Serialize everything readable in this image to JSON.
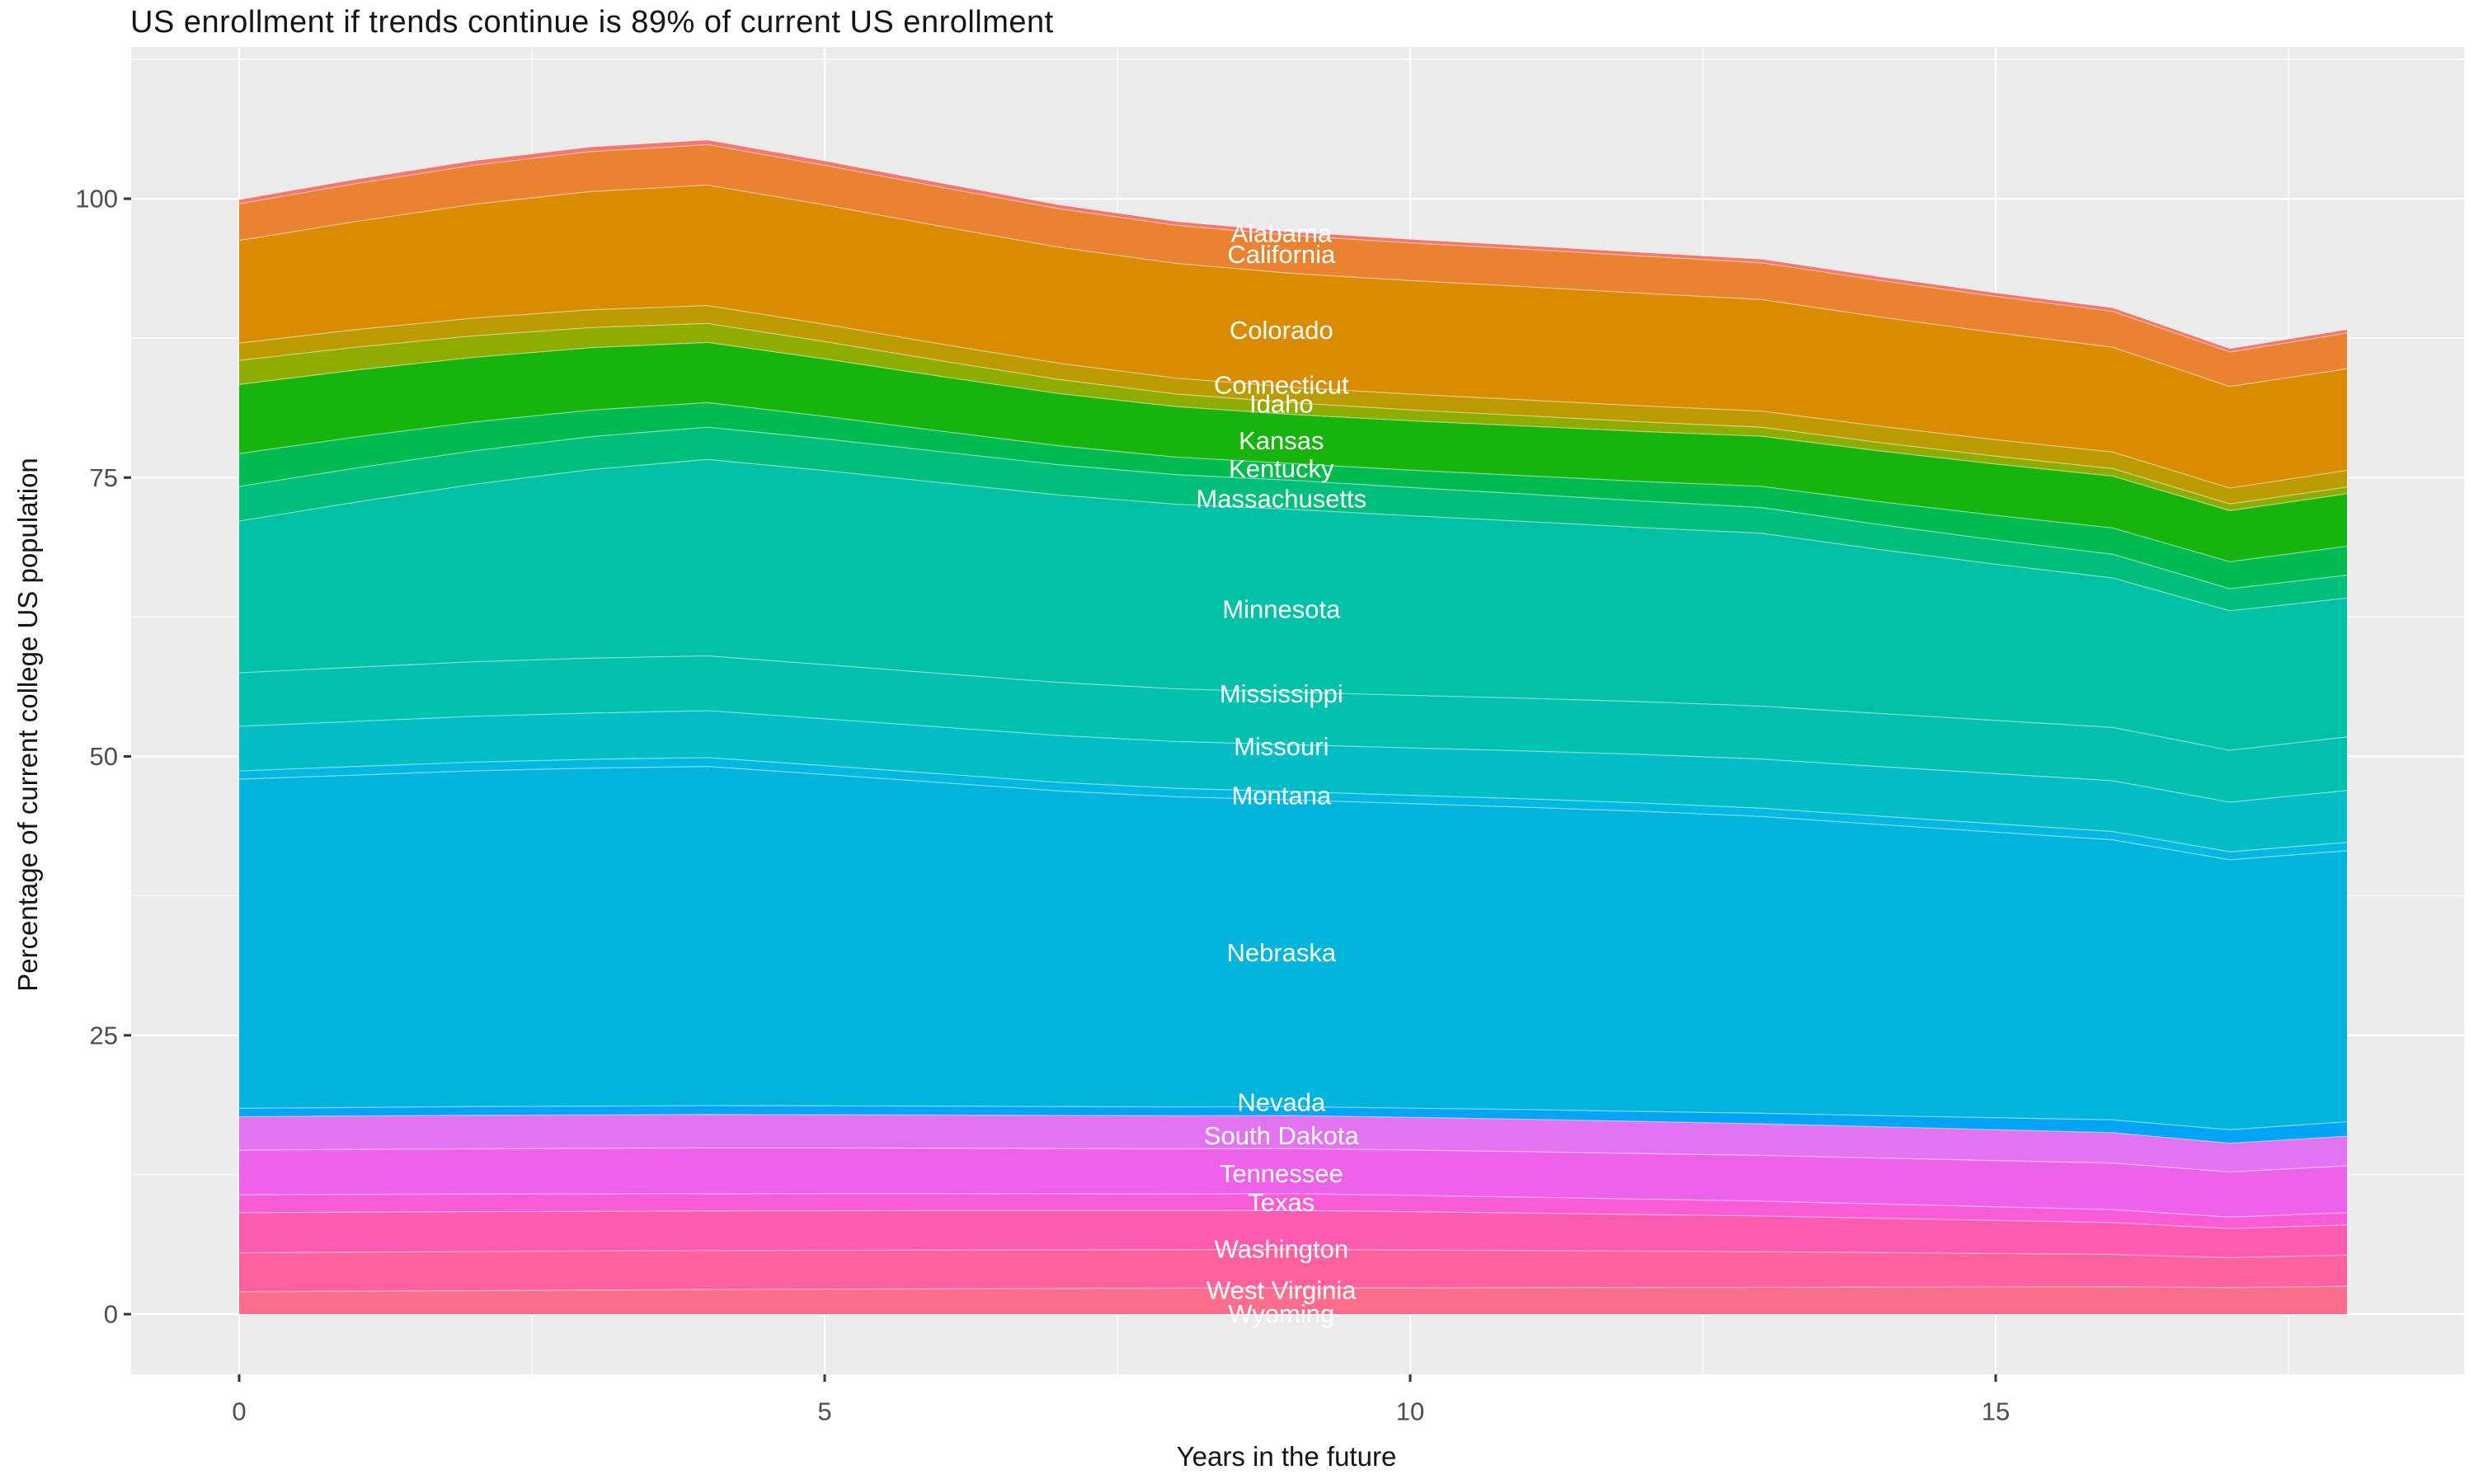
{
  "title": "US enrollment if trends continue is 89% of current US enrollment",
  "colors": {
    "panel_background": "#EBEBEB",
    "grid_major": "#FFFFFF",
    "grid_minor": "#FFFFFF",
    "tick_mark": "#333333",
    "tick_label": "#4D4D4D",
    "axis_title": "#141414",
    "series_label_text": "#FFFFFF",
    "band_seam": "rgba(255,255,255,0.45)"
  },
  "x_axis": {
    "label": "Years in the future",
    "major_ticks": [
      0,
      5,
      10,
      15
    ],
    "minor_ticks": [
      2.5,
      7.5,
      12.5,
      17.5
    ]
  },
  "y_axis": {
    "label": "Percentage of current college US population",
    "major_ticks": [
      0,
      25,
      50,
      75,
      100
    ],
    "minor_ticks": [
      12.5,
      37.5,
      62.5,
      87.5,
      112.5
    ]
  },
  "chart_data": {
    "type": "area",
    "stacked": true,
    "title": "US enrollment if trends continue is 89% of current US enrollment",
    "xlabel": "Years in the future",
    "ylabel": "Percentage of current college US population",
    "x": [
      0,
      1,
      2,
      3,
      4,
      5,
      6,
      7,
      8,
      9,
      10,
      11,
      12,
      13,
      14,
      15,
      16,
      17,
      18
    ],
    "xlim": [
      -0.95,
      19.0
    ],
    "ylim": [
      -4.8,
      113.5
    ],
    "grid": true,
    "legend_position": "none",
    "label_x": 8.9,
    "series": [
      {
        "name": "Alabama",
        "color": "#F8766D",
        "label_pos": 96.9,
        "values": [
          0.35,
          0.37,
          0.39,
          0.4,
          0.4,
          0.38,
          0.36,
          0.34,
          0.32,
          0.3,
          0.3,
          0.3,
          0.3,
          0.3,
          0.3,
          0.3,
          0.3,
          0.28,
          0.3
        ]
      },
      {
        "name": "California",
        "color": "#EA8331",
        "label_pos": 95.0,
        "values": [
          3.3,
          3.4,
          3.5,
          3.58,
          3.62,
          3.55,
          3.5,
          3.45,
          3.42,
          3.4,
          3.38,
          3.36,
          3.34,
          3.3,
          3.28,
          3.25,
          3.22,
          3.1,
          3.2
        ]
      },
      {
        "name": "Colorado",
        "color": "#D98C00",
        "label_pos": 88.2,
        "values": [
          9.2,
          9.7,
          10.2,
          10.6,
          10.8,
          10.7,
          10.55,
          10.4,
          10.28,
          10.2,
          10.18,
          10.15,
          10.1,
          10.0,
          9.8,
          9.6,
          9.4,
          9.1,
          9.1
        ]
      },
      {
        "name": "Connecticut",
        "color": "#BC9B00",
        "label_pos": 83.3,
        "values": [
          1.55,
          1.57,
          1.59,
          1.6,
          1.6,
          1.55,
          1.5,
          1.46,
          1.42,
          1.4,
          1.41,
          1.42,
          1.43,
          1.45,
          1.46,
          1.47,
          1.48,
          1.42,
          1.5
        ]
      },
      {
        "name": "Idaho",
        "color": "#8FAC00",
        "label_pos": 81.6,
        "values": [
          2.15,
          2.05,
          1.93,
          1.8,
          1.7,
          1.55,
          1.4,
          1.26,
          1.14,
          1.05,
          0.98,
          0.92,
          0.86,
          0.8,
          0.75,
          0.71,
          0.67,
          0.61,
          0.6
        ]
      },
      {
        "name": "Kansas",
        "color": "#16B40C",
        "label_pos": 78.3,
        "values": [
          6.2,
          6.0,
          5.8,
          5.6,
          5.4,
          5.15,
          4.9,
          4.68,
          4.52,
          4.4,
          4.42,
          4.45,
          4.48,
          4.5,
          4.55,
          4.6,
          4.65,
          4.58,
          4.7
        ]
      },
      {
        "name": "Kentucky",
        "color": "#00BB50",
        "label_pos": 75.8,
        "values": [
          2.95,
          2.78,
          2.58,
          2.38,
          2.2,
          2.02,
          1.85,
          1.7,
          1.58,
          1.5,
          1.56,
          1.65,
          1.76,
          1.9,
          2.05,
          2.2,
          2.36,
          2.42,
          2.6
        ]
      },
      {
        "name": "Massachusetts",
        "color": "#00BF7D",
        "label_pos": 73.1,
        "values": [
          3.1,
          3.06,
          3.0,
          2.95,
          2.9,
          2.84,
          2.78,
          2.71,
          2.65,
          2.6,
          2.53,
          2.45,
          2.38,
          2.3,
          2.24,
          2.18,
          2.12,
          1.98,
          2.05
        ]
      },
      {
        "name": "Minnesota",
        "color": "#00C1A6",
        "label_pos": 63.2,
        "values": [
          13.6,
          14.8,
          15.9,
          16.9,
          17.6,
          17.4,
          17.1,
          16.8,
          16.55,
          16.4,
          16.1,
          15.85,
          15.6,
          15.5,
          14.7,
          14.0,
          13.4,
          12.5,
          12.45
        ]
      },
      {
        "name": "Mississippi",
        "color": "#00C0B0",
        "label_pos": 55.6,
        "values": [
          4.8,
          4.85,
          4.9,
          4.92,
          4.92,
          4.86,
          4.8,
          4.76,
          4.72,
          4.7,
          4.71,
          4.72,
          4.73,
          4.75,
          4.76,
          4.77,
          4.78,
          4.65,
          4.8
        ]
      },
      {
        "name": "Missouri",
        "color": "#00BDC6",
        "label_pos": 50.9,
        "values": [
          4.0,
          4.05,
          4.1,
          4.15,
          4.2,
          4.2,
          4.2,
          4.2,
          4.2,
          4.2,
          4.25,
          4.3,
          4.35,
          4.4,
          4.45,
          4.5,
          4.55,
          4.45,
          4.65
        ]
      },
      {
        "name": "Montana",
        "color": "#00B8E0",
        "label_pos": 46.5,
        "values": [
          0.75,
          0.77,
          0.78,
          0.79,
          0.8,
          0.79,
          0.78,
          0.77,
          0.76,
          0.75,
          0.75,
          0.75,
          0.75,
          0.75,
          0.75,
          0.75,
          0.75,
          0.72,
          0.75
        ]
      },
      {
        "name": "Nebraska",
        "color": "#00B4DC",
        "label_pos": 32.4,
        "values": [
          29.5,
          29.8,
          30.1,
          30.3,
          30.4,
          29.7,
          29.0,
          28.3,
          27.8,
          27.5,
          27.3,
          27.1,
          26.9,
          26.6,
          26.1,
          25.6,
          25.1,
          24.2,
          24.3
        ]
      },
      {
        "name": "Nevada",
        "color": "#00A5F6",
        "label_pos": 19.0,
        "values": [
          0.75,
          0.76,
          0.78,
          0.79,
          0.8,
          0.8,
          0.8,
          0.8,
          0.8,
          0.8,
          0.83,
          0.87,
          0.9,
          0.95,
          1.0,
          1.08,
          1.15,
          1.2,
          1.3
        ]
      },
      {
        "name": "South Dakota",
        "color": "#E273F2",
        "label_pos": 16.0,
        "values": [
          3.0,
          3.0,
          3.0,
          3.0,
          3.0,
          2.98,
          2.97,
          2.96,
          2.95,
          2.95,
          2.93,
          2.9,
          2.87,
          2.83,
          2.8,
          2.76,
          2.72,
          2.58,
          2.65
        ]
      },
      {
        "name": "Tennessee",
        "color": "#EE61EA",
        "label_pos": 12.6,
        "values": [
          4.0,
          4.03,
          4.06,
          4.08,
          4.1,
          4.09,
          4.07,
          4.06,
          4.05,
          4.05,
          4.06,
          4.08,
          4.09,
          4.1,
          4.12,
          4.15,
          4.17,
          4.05,
          4.2
        ]
      },
      {
        "name": "Texas",
        "color": "#FA5CD8",
        "label_pos": 10.0,
        "values": [
          1.6,
          1.59,
          1.58,
          1.56,
          1.55,
          1.54,
          1.53,
          1.51,
          1.5,
          1.5,
          1.46,
          1.42,
          1.38,
          1.33,
          1.28,
          1.22,
          1.17,
          1.02,
          1.1
        ]
      },
      {
        "name": "Washington",
        "color": "#FD5BB0",
        "label_pos": 5.85,
        "values": [
          3.6,
          3.59,
          3.58,
          3.56,
          3.55,
          3.54,
          3.53,
          3.51,
          3.5,
          3.5,
          3.44,
          3.36,
          3.28,
          3.2,
          3.08,
          2.96,
          2.85,
          2.62,
          2.7
        ]
      },
      {
        "name": "West Virginia",
        "color": "#FF619F",
        "label_pos": 2.15,
        "values": [
          3.5,
          3.5,
          3.5,
          3.5,
          3.5,
          3.49,
          3.48,
          3.46,
          3.45,
          3.45,
          3.39,
          3.33,
          3.26,
          3.2,
          3.1,
          3.0,
          2.9,
          2.68,
          2.8
        ]
      },
      {
        "name": "Wyoming",
        "color": "#FD6E8C",
        "label_pos": 0.05,
        "values": [
          2.0,
          2.06,
          2.11,
          2.16,
          2.2,
          2.24,
          2.27,
          2.31,
          2.33,
          2.35,
          2.36,
          2.38,
          2.39,
          2.4,
          2.42,
          2.44,
          2.46,
          2.38,
          2.5
        ]
      }
    ]
  }
}
